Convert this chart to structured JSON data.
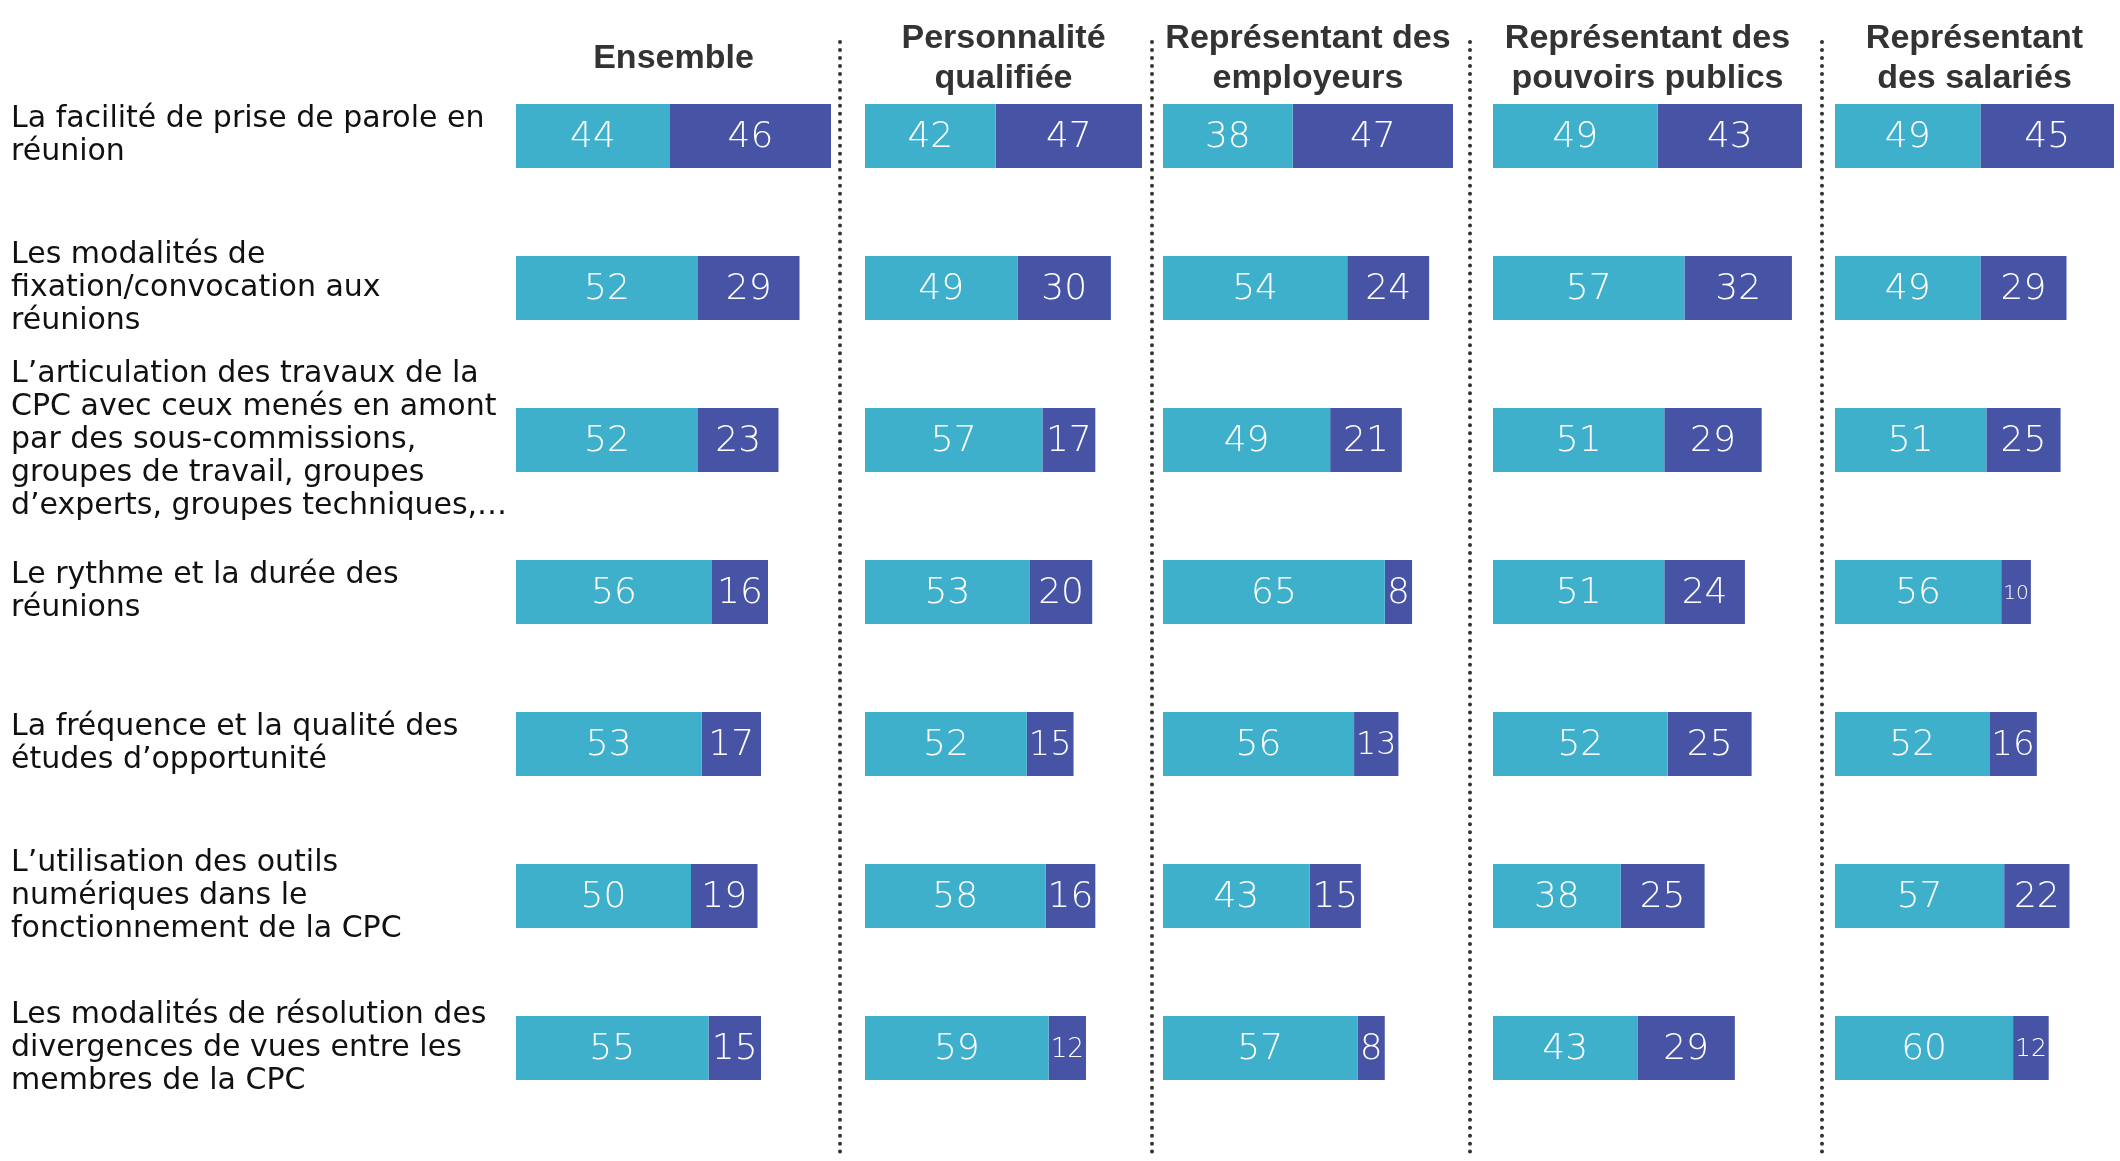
{
  "chart_data": [
    {
      "type": "bar",
      "orientation": "horizontal",
      "stacked": true,
      "title": "Ensemble",
      "categories": [
        "La facilité de prise de parole en réunion",
        "Les modalités de fixation/convocation aux réunions",
        "L’articulation des travaux de la CPC avec ceux menés en amont par des sous-commissions, groupes de travail, groupes d’experts, groupes techniques,…",
        "Le rythme et la durée des réunions",
        "La fréquence et la qualité des études d’opportunité",
        "L’utilisation des outils numériques dans le fonctionnement de la CPC",
        "Les modalités de résolution des divergences de vues entre les membres de la CPC"
      ],
      "series": [
        {
          "color": "#3fb0cc",
          "values": [
            44,
            52,
            52,
            56,
            53,
            50,
            55
          ]
        },
        {
          "color": "#4753a5",
          "values": [
            46,
            29,
            23,
            16,
            17,
            19,
            15
          ]
        }
      ],
      "xlim": [
        0,
        90
      ],
      "tick_labels": "y",
      "data_labels": true
    },
    {
      "type": "bar",
      "orientation": "horizontal",
      "stacked": true,
      "title": "Personnalité qualifiée",
      "categories": [
        null,
        null,
        null,
        null,
        null,
        null,
        null
      ],
      "series": [
        {
          "color": "#3fb0cc",
          "values": [
            42,
            49,
            57,
            53,
            52,
            58,
            59
          ]
        },
        {
          "color": "#4753a5",
          "values": [
            47,
            30,
            17,
            20,
            15,
            16,
            12
          ]
        }
      ],
      "xlim": [
        0,
        89
      ],
      "tick_labels": false,
      "data_labels": true
    },
    {
      "type": "bar",
      "orientation": "horizontal",
      "stacked": true,
      "title": "Représentant des employeurs",
      "categories": [
        null,
        null,
        null,
        null,
        null,
        null,
        null
      ],
      "series": [
        {
          "color": "#3fb0cc",
          "values": [
            38,
            54,
            49,
            65,
            56,
            43,
            57
          ]
        },
        {
          "color": "#4753a5",
          "values": [
            47,
            24,
            21,
            8,
            13,
            15,
            8
          ]
        }
      ],
      "xlim": [
        0,
        85
      ],
      "tick_labels": false,
      "data_labels": true
    },
    {
      "type": "bar",
      "orientation": "horizontal",
      "stacked": true,
      "title": "Représentant des pouvoirs publics",
      "categories": [
        null,
        null,
        null,
        null,
        null,
        null,
        null
      ],
      "series": [
        {
          "color": "#3fb0cc",
          "values": [
            49,
            57,
            51,
            51,
            52,
            38,
            43
          ]
        },
        {
          "color": "#4753a5",
          "values": [
            43,
            32,
            29,
            24,
            25,
            25,
            29
          ]
        }
      ],
      "xlim": [
        0,
        92
      ],
      "tick_labels": false,
      "data_labels": true
    },
    {
      "type": "bar",
      "orientation": "horizontal",
      "stacked": true,
      "title": "Représentant des salariés",
      "categories": [
        null,
        null,
        null,
        null,
        null,
        null,
        null
      ],
      "series": [
        {
          "color": "#3fb0cc",
          "values": [
            49,
            49,
            51,
            56,
            52,
            57,
            60
          ]
        },
        {
          "color": "#4753a5",
          "values": [
            45,
            29,
            25,
            10,
            16,
            22,
            12
          ]
        }
      ],
      "xlim": [
        0,
        94
      ],
      "tick_labels": false,
      "data_labels": true
    }
  ]
}
